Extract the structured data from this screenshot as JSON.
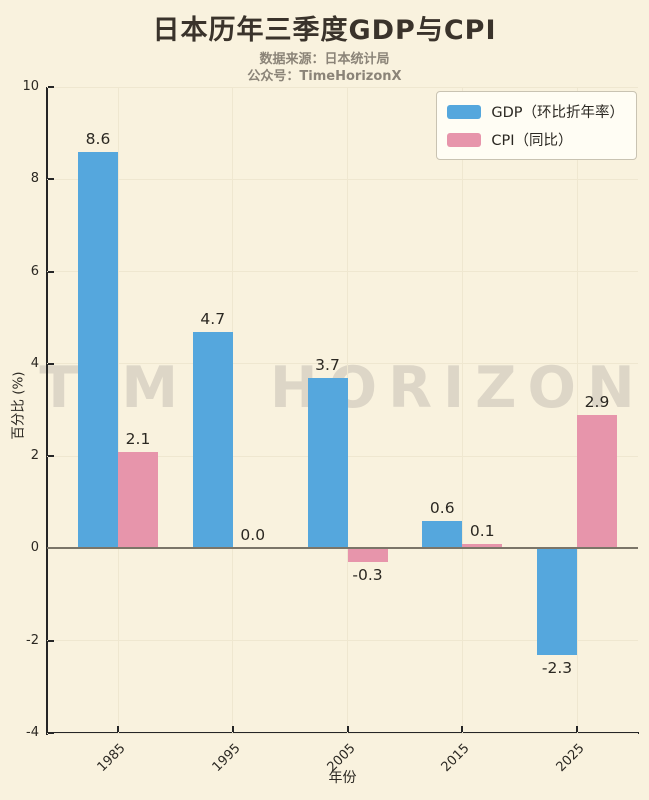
{
  "title": "日本历年三季度GDP与CPI",
  "subtitle": {
    "line1": "数据来源：日本统计局",
    "line2": "公众号：TimeHorizonX"
  },
  "watermark": "TIME HORIZON",
  "chart_data": {
    "type": "bar",
    "categories": [
      "1985",
      "1995",
      "2005",
      "2015",
      "2025"
    ],
    "series": [
      {
        "name": "GDP（环比折年率）",
        "color": "#55a7dd",
        "values": [
          8.6,
          4.7,
          3.7,
          0.6,
          -2.3
        ],
        "labels": [
          "8.6",
          "4.7",
          "3.7",
          "0.6",
          "-2.3"
        ]
      },
      {
        "name": "CPI（同比）",
        "color": "#e795ab",
        "values": [
          2.1,
          0.0,
          -0.3,
          0.1,
          2.9
        ],
        "labels": [
          "2.1",
          "0.0",
          "-0.3",
          "0.1",
          "2.9"
        ]
      }
    ],
    "xlabel": "年份",
    "ylabel": "百分比 (%)",
    "ylim": [
      -4,
      10
    ],
    "yticks": [
      -4,
      -2,
      0,
      2,
      4,
      6,
      8,
      10
    ],
    "ytick_labels": [
      "-4",
      "-2",
      "0",
      "2",
      "4",
      "6",
      "8",
      "10"
    ],
    "zero_line": 0,
    "grid": true,
    "legend_position": "upper right",
    "colors": {
      "background": "#f9f2de",
      "title": "#3a332b",
      "subtitle": "#8b8478",
      "axis": "#262626",
      "zero_line": "#7b7568",
      "gridline": "#efe7d0",
      "watermark": "#ddd6c7",
      "gdp_bar": "#55a7dd",
      "cpi_bar": "#e795ab"
    }
  }
}
